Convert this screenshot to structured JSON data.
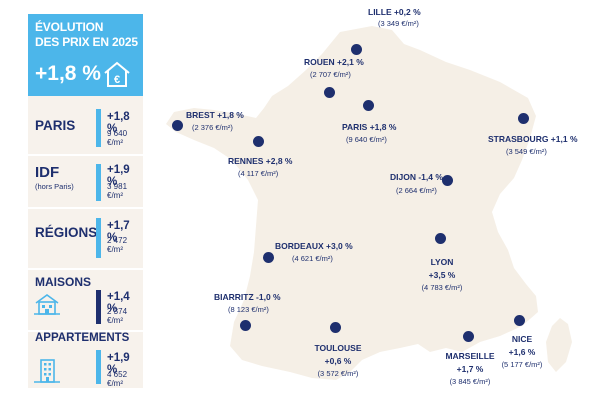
{
  "panel": {
    "title": "ÉVOLUTION\nDES PRIX EN 2025",
    "total_change": "+1,8 %",
    "rows": [
      {
        "label": "PARIS",
        "sub": "",
        "change": "+1,8 %",
        "price": "9 640 €/m²"
      },
      {
        "label": "IDF",
        "sub": "(hors Paris)",
        "change": "+1,9 %",
        "price": "3 981 €/m²"
      },
      {
        "label": "RÉGIONS",
        "sub": "",
        "change": "+1,7 %",
        "price": "2 472 €/m²"
      },
      {
        "label": "MAISONS",
        "sub": "",
        "change": "+1,4 %",
        "price": "2 374 €/m²"
      },
      {
        "label": "APPARTEMENTS",
        "sub": "",
        "change": "+1,9 %",
        "price": "4 652 €/m²"
      }
    ]
  },
  "cities": {
    "lille": {
      "name": "LILLE +0,2 %",
      "price": "(3 349 €/m²)"
    },
    "rouen": {
      "name": "ROUEN +2,1 %",
      "price": "(2 707 €/m²)"
    },
    "brest": {
      "name": "BREST +1,8 %",
      "price": "(2 376 €/m²)"
    },
    "paris": {
      "name": "PARIS +1,8 %",
      "price": "(9 640 €/m²)"
    },
    "strasbourg": {
      "name": "STRASBOURG +1,1 %",
      "price": "(3 549 €/m²)"
    },
    "rennes": {
      "name": "RENNES +2,8 %",
      "price": "(4 117 €/m²)"
    },
    "dijon": {
      "name": "DIJON -1,4 %",
      "price": "(2 664 €/m²)"
    },
    "bordeaux": {
      "name": "BORDEAUX +3,0 %",
      "price": "(4 621 €/m²)"
    },
    "lyon": {
      "name": "LYON",
      "change": "+3,5 %",
      "price": "(4 783 €/m²)"
    },
    "biarritz": {
      "name": "BIARRITZ -1,0 %",
      "price": "(8 123 €/m²)"
    },
    "toulouse": {
      "name": "TOULOUSE",
      "change": "+0,6 %",
      "price": "(3 572 €/m²)"
    },
    "marseille": {
      "name": "MARSEILLE",
      "change": "+1,7 %",
      "price": "(3 845 €/m²)"
    },
    "nice": {
      "name": "NICE",
      "change": "+1,6 %",
      "price": "(5 177 €/m²)"
    }
  },
  "colors": {
    "navy": "#1e2f6e",
    "accent": "#4cb6ea",
    "land": "#f5efe6",
    "panel": "#f7f2ec"
  },
  "icons": [
    "euro-house-icon",
    "house-icon",
    "apartment-building-icon",
    "city-marker-icon"
  ]
}
